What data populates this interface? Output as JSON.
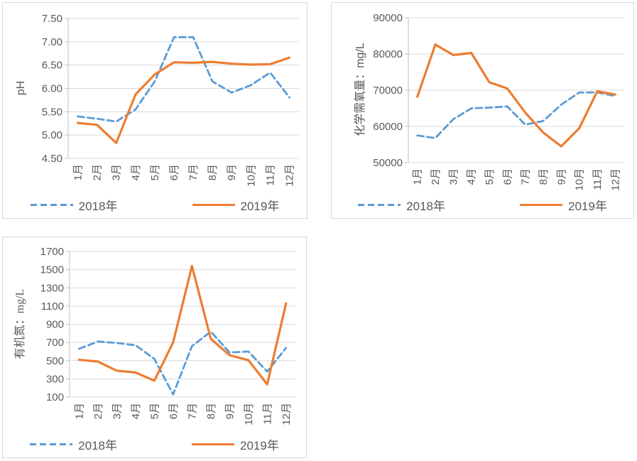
{
  "colors": {
    "series_2018_blue": "#5B9BD5",
    "series_2019_orange": "#ED7D31",
    "gridline": "#D9D9D9",
    "axis_line": "#BFBFBF",
    "axis_text": "#595959",
    "panel_border": "#D7D7D7",
    "background": "#FFFFFF"
  },
  "months": [
    "1月",
    "2月",
    "3月",
    "4月",
    "5月",
    "6月",
    "7月",
    "8月",
    "9月",
    "10月",
    "11月",
    "12月"
  ],
  "chart_data": [
    {
      "type": "line",
      "title": "",
      "xlabel": "",
      "ylabel": "pH",
      "ylim": [
        4.5,
        7.5
      ],
      "grid": true,
      "legend_position": "bottom",
      "xtick_rotation": 90,
      "categories": [
        "1月",
        "2月",
        "3月",
        "4月",
        "5月",
        "6月",
        "7月",
        "8月",
        "9月",
        "10月",
        "11月",
        "12月"
      ],
      "ytick_labels": [
        "7.50",
        "7.00",
        "6.50",
        "6.00",
        "5.50",
        "5.00",
        "4.50"
      ],
      "ytick_values": [
        7.5,
        7.0,
        6.5,
        6.0,
        5.5,
        5.0,
        4.5
      ],
      "series": [
        {
          "name": "2018年",
          "style": "dashed",
          "color": "#5B9BD5",
          "values": [
            5.4,
            5.35,
            5.29,
            5.55,
            6.15,
            7.1,
            7.1,
            6.15,
            5.91,
            6.07,
            6.34,
            5.81
          ]
        },
        {
          "name": "2019年",
          "style": "solid",
          "color": "#ED7D31",
          "values": [
            5.26,
            5.22,
            4.83,
            5.87,
            6.3,
            6.56,
            6.55,
            6.57,
            6.53,
            6.51,
            6.52,
            6.66
          ]
        }
      ]
    },
    {
      "type": "line",
      "title": "",
      "xlabel": "",
      "ylabel": "化学需氧量：mg/L",
      "ylim": [
        50000,
        90000
      ],
      "grid": true,
      "legend_position": "bottom",
      "xtick_rotation": 90,
      "categories": [
        "1月",
        "2月",
        "3月",
        "4月",
        "5月",
        "6月",
        "7月",
        "8月",
        "9月",
        "10月",
        "11月",
        "12月"
      ],
      "ytick_labels": [
        "90000",
        "80000",
        "70000",
        "60000",
        "50000"
      ],
      "ytick_values": [
        90000,
        80000,
        70000,
        60000,
        50000
      ],
      "series": [
        {
          "name": "2018年",
          "style": "dashed",
          "color": "#5B9BD5",
          "values": [
            57500,
            56800,
            62000,
            65000,
            65200,
            65500,
            60500,
            61500,
            66000,
            69400,
            69400,
            68400
          ]
        },
        {
          "name": "2019年",
          "style": "solid",
          "color": "#ED7D31",
          "values": [
            68200,
            82600,
            79700,
            80300,
            72200,
            70500,
            63800,
            58300,
            54500,
            59500,
            69700,
            68800
          ]
        }
      ]
    },
    {
      "type": "line",
      "title": "",
      "xlabel": "",
      "ylabel": "有机氮：mg/L",
      "ylim": [
        100,
        1700
      ],
      "grid": true,
      "legend_position": "bottom",
      "xtick_rotation": 90,
      "categories": [
        "1月",
        "2月",
        "3月",
        "4月",
        "5月",
        "6月",
        "7月",
        "8月",
        "9月",
        "10月",
        "11月",
        "12月"
      ],
      "ytick_labels": [
        "1700",
        "1500",
        "1300",
        "1100",
        "900",
        "700",
        "500",
        "300",
        "100"
      ],
      "ytick_values": [
        1700,
        1500,
        1300,
        1100,
        900,
        700,
        500,
        300,
        100
      ],
      "series": [
        {
          "name": "2018年",
          "style": "dashed",
          "color": "#5B9BD5",
          "values": [
            630,
            710,
            695,
            670,
            520,
            130,
            660,
            820,
            590,
            600,
            380,
            640
          ]
        },
        {
          "name": "2019年",
          "style": "solid",
          "color": "#ED7D31",
          "values": [
            510,
            490,
            390,
            370,
            280,
            700,
            1540,
            740,
            560,
            505,
            240,
            1130
          ]
        }
      ]
    }
  ]
}
